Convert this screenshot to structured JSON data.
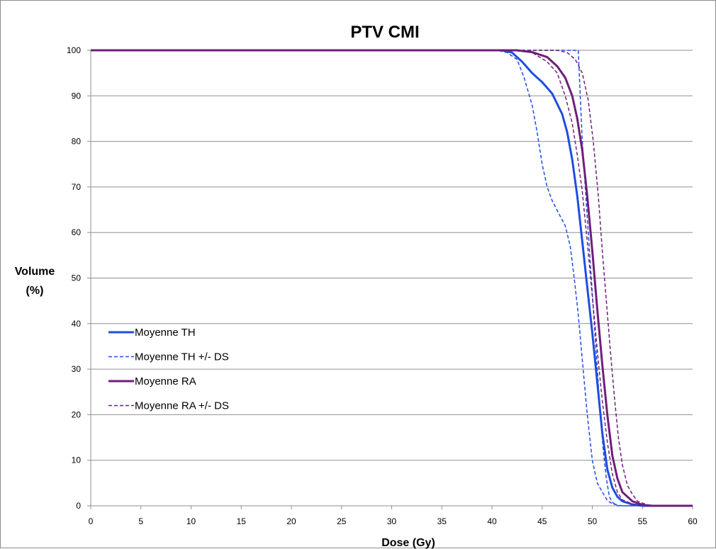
{
  "chart_data": {
    "type": "line",
    "title": "PTV CMI",
    "xlabel": "Dose (Gy)",
    "ylabel_line1": "Volume",
    "ylabel_line2": "(%)",
    "xlim": [
      0,
      60
    ],
    "ylim": [
      0,
      100
    ],
    "xticks": [
      0,
      5,
      10,
      15,
      20,
      25,
      30,
      35,
      40,
      45,
      50,
      55,
      60
    ],
    "yticks": [
      0,
      10,
      20,
      30,
      40,
      50,
      60,
      70,
      80,
      90,
      100
    ],
    "grid": "horizontal",
    "legend_position": "left",
    "series": [
      {
        "name": "Moyenne TH",
        "color": "#1f4de0",
        "style": "solid",
        "legend_index": 0,
        "points": [
          [
            0,
            100
          ],
          [
            41,
            100
          ],
          [
            42,
            99.5
          ],
          [
            43,
            97.5
          ],
          [
            44,
            95
          ],
          [
            45,
            93
          ],
          [
            46,
            90.5
          ],
          [
            47,
            86
          ],
          [
            47.5,
            82
          ],
          [
            48,
            76
          ],
          [
            48.5,
            68
          ],
          [
            49,
            58
          ],
          [
            49.5,
            48
          ],
          [
            50,
            38
          ],
          [
            50.5,
            27
          ],
          [
            51,
            16
          ],
          [
            51.5,
            8
          ],
          [
            52,
            4
          ],
          [
            52.5,
            2
          ],
          [
            53,
            1
          ],
          [
            54,
            0.3
          ],
          [
            55,
            0
          ],
          [
            60,
            0
          ]
        ]
      },
      {
        "name": "Moyenne TH +/- DS",
        "color": "#1f4de0",
        "style": "dashed",
        "legend_index": 1,
        "points": [
          [
            0,
            100
          ],
          [
            40.5,
            100
          ],
          [
            41.5,
            99.5
          ],
          [
            42.5,
            98
          ],
          [
            43.2,
            94
          ],
          [
            44,
            88
          ],
          [
            44.5,
            82
          ],
          [
            45,
            75
          ],
          [
            45.5,
            70
          ],
          [
            46,
            67
          ],
          [
            46.7,
            64
          ],
          [
            47.3,
            61.5
          ],
          [
            47.8,
            57
          ],
          [
            48.2,
            50
          ],
          [
            48.6,
            42
          ],
          [
            49,
            32
          ],
          [
            49.5,
            20
          ],
          [
            50,
            10
          ],
          [
            50.5,
            5
          ],
          [
            51,
            3
          ],
          [
            51.5,
            1.2
          ],
          [
            52,
            0.4
          ],
          [
            53,
            0
          ],
          [
            60,
            0
          ]
        ]
      },
      {
        "name": "Moyenne TH +/- DS",
        "color": "#1f4de0",
        "style": "dashed",
        "legend_index": -1,
        "points": [
          [
            0,
            100
          ],
          [
            48.6,
            100
          ],
          [
            48.8,
            90
          ],
          [
            49,
            80
          ],
          [
            49.3,
            70
          ],
          [
            49.6,
            60
          ],
          [
            49.9,
            50
          ],
          [
            50.2,
            40
          ],
          [
            50.5,
            30
          ],
          [
            50.8,
            20
          ],
          [
            51.1,
            12
          ],
          [
            51.4,
            6
          ],
          [
            51.7,
            2
          ],
          [
            52,
            0.8
          ],
          [
            52.5,
            0
          ],
          [
            60,
            0
          ]
        ]
      },
      {
        "name": "Moyenne RA",
        "color": "#6e1f7a",
        "style": "solid",
        "legend_index": 2,
        "points": [
          [
            0,
            100
          ],
          [
            42.5,
            100
          ],
          [
            44,
            99.6
          ],
          [
            45.5,
            98.5
          ],
          [
            46.5,
            96.5
          ],
          [
            47.3,
            94
          ],
          [
            48,
            90
          ],
          [
            48.5,
            85
          ],
          [
            49,
            78
          ],
          [
            49.5,
            68
          ],
          [
            50,
            56
          ],
          [
            50.5,
            43
          ],
          [
            51,
            31
          ],
          [
            51.5,
            20
          ],
          [
            52,
            11
          ],
          [
            52.5,
            6
          ],
          [
            53,
            3
          ],
          [
            54,
            1
          ],
          [
            55,
            0.2
          ],
          [
            56,
            0
          ],
          [
            60,
            0
          ]
        ]
      },
      {
        "name": "Moyenne RA +/- DS",
        "color": "#6e1f7a",
        "style": "dashed",
        "legend_index": 3,
        "points": [
          [
            0,
            100
          ],
          [
            42,
            100
          ],
          [
            44,
            99.5
          ],
          [
            45.5,
            97.5
          ],
          [
            46.5,
            95
          ],
          [
            47.3,
            90
          ],
          [
            48,
            84
          ],
          [
            48.5,
            77
          ],
          [
            49,
            69
          ],
          [
            49.5,
            58
          ],
          [
            50,
            46
          ],
          [
            50.5,
            34
          ],
          [
            51,
            23
          ],
          [
            51.5,
            14
          ],
          [
            52,
            7
          ],
          [
            52.5,
            3
          ],
          [
            53,
            1.3
          ],
          [
            54,
            0.4
          ],
          [
            55,
            0
          ],
          [
            60,
            0
          ]
        ]
      },
      {
        "name": "Moyenne RA +/- DS",
        "color": "#6e1f7a",
        "style": "dashed",
        "legend_index": -1,
        "points": [
          [
            0,
            100
          ],
          [
            46.5,
            100
          ],
          [
            47.5,
            99.5
          ],
          [
            48.3,
            98
          ],
          [
            49,
            95
          ],
          [
            49.6,
            89
          ],
          [
            50.1,
            80
          ],
          [
            50.6,
            68
          ],
          [
            51,
            56
          ],
          [
            51.4,
            45
          ],
          [
            51.8,
            34
          ],
          [
            52.2,
            24
          ],
          [
            52.6,
            15
          ],
          [
            53,
            9
          ],
          [
            53.5,
            4.5
          ],
          [
            54,
            2.5
          ],
          [
            54.5,
            1
          ],
          [
            55.5,
            0.2
          ],
          [
            56.5,
            0
          ],
          [
            60,
            0
          ]
        ]
      }
    ]
  }
}
